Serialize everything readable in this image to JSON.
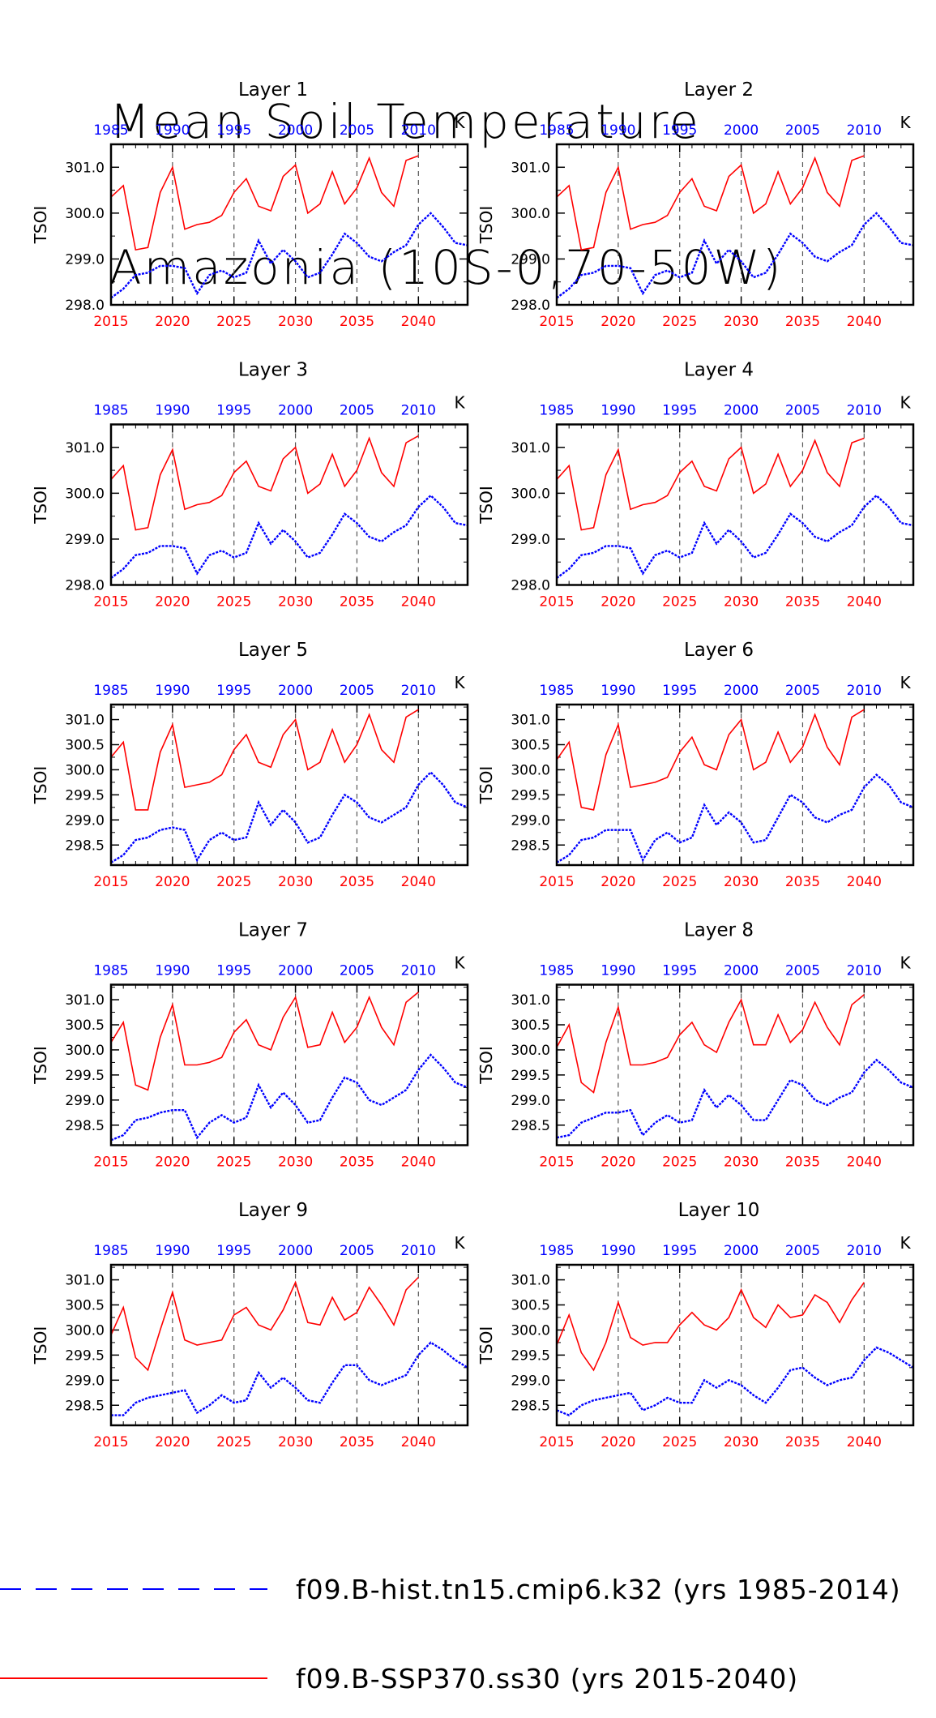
{
  "title": {
    "line1": "Mean Soil Temperature",
    "line2": "Amazonia (10S-0,70-50W)"
  },
  "colors": {
    "hist": "#0000ff",
    "ssp": "#ff0000",
    "axis": "#000000"
  },
  "chart_data": {
    "type": "line",
    "ylabel": "TSOI",
    "units": "K",
    "x_bottom": {
      "ticks": [
        2015,
        2020,
        2025,
        2030,
        2035,
        2040
      ],
      "range": [
        2015,
        2044
      ]
    },
    "x_top": {
      "ticks": [
        1985,
        1990,
        1995,
        2000,
        2005,
        2010
      ],
      "range": [
        1985,
        2014
      ]
    },
    "vertical_gridlines": [
      2020,
      2025,
      2030,
      2035,
      2040
    ],
    "legend": [
      {
        "label": "f09.B-hist.tn15.cmip6.k32 (yrs 1985-2014)",
        "style": "dashed",
        "color": "#0000ff"
      },
      {
        "label": "f09.B-SSP370.ss30 (yrs 2015-2040)",
        "style": "solid",
        "color": "#ff0000"
      }
    ],
    "panels": [
      {
        "title": "Layer 1",
        "ylim": [
          298.0,
          301.5
        ],
        "yticks": [
          "298.0",
          "299.0",
          "300.0",
          "301.0"
        ],
        "hist": [
          298.15,
          298.35,
          298.65,
          298.7,
          298.85,
          298.85,
          298.8,
          298.25,
          298.65,
          298.75,
          298.6,
          298.7,
          299.4,
          298.9,
          299.2,
          298.95,
          298.6,
          298.7,
          299.1,
          299.55,
          299.35,
          299.05,
          298.95,
          299.15,
          299.3,
          299.75,
          300.0,
          299.7,
          299.35,
          299.3
        ],
        "ssp": [
          300.35,
          300.6,
          299.2,
          299.25,
          300.45,
          301.0,
          299.65,
          299.75,
          299.8,
          299.95,
          300.45,
          300.75,
          300.15,
          300.05,
          300.8,
          301.05,
          300.0,
          300.2,
          300.9,
          300.2,
          300.55,
          301.2,
          300.45,
          300.15,
          301.15,
          301.25
        ]
      },
      {
        "title": "Layer 2",
        "ylim": [
          298.0,
          301.5
        ],
        "yticks": [
          "298.0",
          "299.0",
          "300.0",
          "301.0"
        ],
        "hist": [
          298.15,
          298.35,
          298.65,
          298.7,
          298.85,
          298.85,
          298.8,
          298.25,
          298.65,
          298.75,
          298.6,
          298.7,
          299.4,
          298.9,
          299.2,
          298.95,
          298.6,
          298.7,
          299.1,
          299.55,
          299.35,
          299.05,
          298.95,
          299.15,
          299.3,
          299.75,
          300.0,
          299.7,
          299.35,
          299.3
        ],
        "ssp": [
          300.35,
          300.6,
          299.2,
          299.25,
          300.45,
          301.0,
          299.65,
          299.75,
          299.8,
          299.95,
          300.45,
          300.75,
          300.15,
          300.05,
          300.8,
          301.05,
          300.0,
          300.2,
          300.9,
          300.2,
          300.55,
          301.2,
          300.45,
          300.15,
          301.15,
          301.25
        ]
      },
      {
        "title": "Layer 3",
        "ylim": [
          298.0,
          301.5
        ],
        "yticks": [
          "298.0",
          "299.0",
          "300.0",
          "301.0"
        ],
        "hist": [
          298.15,
          298.35,
          298.65,
          298.7,
          298.85,
          298.85,
          298.8,
          298.25,
          298.65,
          298.75,
          298.6,
          298.7,
          299.35,
          298.9,
          299.2,
          298.95,
          298.6,
          298.7,
          299.1,
          299.55,
          299.35,
          299.05,
          298.95,
          299.15,
          299.3,
          299.7,
          299.95,
          299.7,
          299.35,
          299.3
        ],
        "ssp": [
          300.3,
          300.6,
          299.2,
          299.25,
          300.4,
          300.95,
          299.65,
          299.75,
          299.8,
          299.95,
          300.45,
          300.7,
          300.15,
          300.05,
          300.75,
          301.0,
          300.0,
          300.2,
          300.85,
          300.15,
          300.5,
          301.2,
          300.45,
          300.15,
          301.1,
          301.25
        ]
      },
      {
        "title": "Layer 4",
        "ylim": [
          298.0,
          301.5
        ],
        "yticks": [
          "298.0",
          "299.0",
          "300.0",
          "301.0"
        ],
        "hist": [
          298.15,
          298.35,
          298.65,
          298.7,
          298.85,
          298.85,
          298.8,
          298.25,
          298.65,
          298.75,
          298.6,
          298.7,
          299.35,
          298.9,
          299.2,
          298.95,
          298.6,
          298.7,
          299.1,
          299.55,
          299.35,
          299.05,
          298.95,
          299.15,
          299.3,
          299.7,
          299.95,
          299.7,
          299.35,
          299.3
        ],
        "ssp": [
          300.3,
          300.6,
          299.2,
          299.25,
          300.4,
          300.95,
          299.65,
          299.75,
          299.8,
          299.95,
          300.45,
          300.7,
          300.15,
          300.05,
          300.75,
          301.0,
          300.0,
          300.2,
          300.85,
          300.15,
          300.5,
          301.15,
          300.45,
          300.15,
          301.1,
          301.2
        ]
      },
      {
        "title": "Layer 5",
        "ylim": [
          298.1,
          301.3
        ],
        "yticks": [
          "298.5",
          "299.0",
          "299.5",
          "300.0",
          "300.5",
          "301.0"
        ],
        "hist": [
          298.15,
          298.3,
          298.6,
          298.65,
          298.8,
          298.85,
          298.8,
          298.2,
          298.6,
          298.75,
          298.6,
          298.65,
          299.35,
          298.9,
          299.2,
          298.95,
          298.55,
          298.65,
          299.1,
          299.5,
          299.35,
          299.05,
          298.95,
          299.1,
          299.25,
          299.7,
          299.95,
          299.7,
          299.35,
          299.25
        ],
        "ssp": [
          300.25,
          300.55,
          299.2,
          299.2,
          300.35,
          300.9,
          299.65,
          299.7,
          299.75,
          299.9,
          300.4,
          300.7,
          300.15,
          300.05,
          300.7,
          301.0,
          300.0,
          300.15,
          300.8,
          300.15,
          300.5,
          301.1,
          300.4,
          300.15,
          301.05,
          301.2
        ]
      },
      {
        "title": "Layer 6",
        "ylim": [
          298.1,
          301.3
        ],
        "yticks": [
          "298.5",
          "299.0",
          "299.5",
          "300.0",
          "300.5",
          "301.0"
        ],
        "hist": [
          298.15,
          298.3,
          298.6,
          298.65,
          298.8,
          298.8,
          298.8,
          298.2,
          298.6,
          298.75,
          298.55,
          298.65,
          299.3,
          298.9,
          299.15,
          298.95,
          298.55,
          298.6,
          299.05,
          299.5,
          299.35,
          299.05,
          298.95,
          299.1,
          299.2,
          299.65,
          299.9,
          299.7,
          299.35,
          299.25
        ],
        "ssp": [
          300.2,
          300.55,
          299.25,
          299.2,
          300.3,
          300.9,
          299.65,
          299.7,
          299.75,
          299.85,
          300.35,
          300.65,
          300.1,
          300.0,
          300.7,
          301.0,
          300.0,
          300.15,
          300.75,
          300.15,
          300.45,
          301.1,
          300.45,
          300.1,
          301.05,
          301.2
        ]
      },
      {
        "title": "Layer 7",
        "ylim": [
          298.1,
          301.3
        ],
        "yticks": [
          "298.5",
          "299.0",
          "299.5",
          "300.0",
          "300.5",
          "301.0"
        ],
        "hist": [
          298.2,
          298.3,
          298.6,
          298.65,
          298.75,
          298.8,
          298.8,
          298.25,
          298.55,
          298.7,
          298.55,
          298.65,
          299.3,
          298.85,
          299.15,
          298.9,
          298.55,
          298.6,
          299.05,
          299.45,
          299.35,
          299.0,
          298.9,
          299.05,
          299.2,
          299.6,
          299.9,
          299.65,
          299.35,
          299.25
        ],
        "ssp": [
          300.15,
          300.55,
          299.3,
          299.2,
          300.25,
          300.9,
          299.7,
          299.7,
          299.75,
          299.85,
          300.35,
          300.6,
          300.1,
          300.0,
          300.65,
          301.05,
          300.05,
          300.1,
          300.75,
          300.15,
          300.45,
          301.05,
          300.45,
          300.1,
          300.95,
          301.15
        ]
      },
      {
        "title": "Layer 8",
        "ylim": [
          298.1,
          301.3
        ],
        "yticks": [
          "298.5",
          "299.0",
          "299.5",
          "300.0",
          "300.5",
          "301.0"
        ],
        "hist": [
          298.25,
          298.3,
          298.55,
          298.65,
          298.75,
          298.75,
          298.8,
          298.3,
          298.55,
          298.7,
          298.55,
          298.6,
          299.2,
          298.85,
          299.1,
          298.9,
          298.6,
          298.6,
          299.0,
          299.4,
          299.3,
          299.0,
          298.9,
          299.05,
          299.15,
          299.55,
          299.8,
          299.6,
          299.35,
          299.25
        ],
        "ssp": [
          300.05,
          300.5,
          299.35,
          299.15,
          300.15,
          300.85,
          299.7,
          299.7,
          299.75,
          299.85,
          300.3,
          300.55,
          300.1,
          299.95,
          300.55,
          301.0,
          300.1,
          300.1,
          300.7,
          300.15,
          300.4,
          300.95,
          300.45,
          300.1,
          300.9,
          301.1
        ]
      },
      {
        "title": "Layer 9",
        "ylim": [
          298.1,
          301.3
        ],
        "yticks": [
          "298.5",
          "299.0",
          "299.5",
          "300.0",
          "300.5",
          "301.0"
        ],
        "hist": [
          298.3,
          298.3,
          298.55,
          298.65,
          298.7,
          298.75,
          298.8,
          298.35,
          298.5,
          298.7,
          298.55,
          298.6,
          299.15,
          298.85,
          299.05,
          298.85,
          298.6,
          298.55,
          298.95,
          299.3,
          299.3,
          299.0,
          298.9,
          299.0,
          299.1,
          299.5,
          299.75,
          299.6,
          299.4,
          299.25
        ],
        "ssp": [
          299.9,
          300.45,
          299.45,
          299.2,
          300.0,
          300.75,
          299.8,
          299.7,
          299.75,
          299.8,
          300.3,
          300.45,
          300.1,
          300.0,
          300.4,
          300.95,
          300.15,
          300.1,
          300.65,
          300.2,
          300.35,
          300.85,
          300.5,
          300.1,
          300.8,
          301.05
        ]
      },
      {
        "title": "Layer 10",
        "ylim": [
          298.1,
          301.3
        ],
        "yticks": [
          "298.5",
          "299.0",
          "299.5",
          "300.0",
          "300.5",
          "301.0"
        ],
        "hist": [
          298.4,
          298.3,
          298.5,
          298.6,
          298.65,
          298.7,
          298.75,
          298.4,
          298.5,
          298.65,
          298.55,
          298.55,
          299.0,
          298.85,
          299.0,
          298.9,
          298.7,
          298.55,
          298.85,
          299.2,
          299.25,
          299.05,
          298.9,
          299.0,
          299.05,
          299.4,
          299.65,
          299.55,
          299.4,
          299.25
        ],
        "ssp": [
          299.7,
          300.3,
          299.55,
          299.2,
          299.75,
          300.55,
          299.85,
          299.7,
          299.75,
          299.75,
          300.1,
          300.35,
          300.1,
          300.0,
          300.25,
          300.8,
          300.25,
          300.05,
          300.5,
          300.25,
          300.3,
          300.7,
          300.55,
          300.15,
          300.6,
          300.95
        ]
      }
    ]
  }
}
